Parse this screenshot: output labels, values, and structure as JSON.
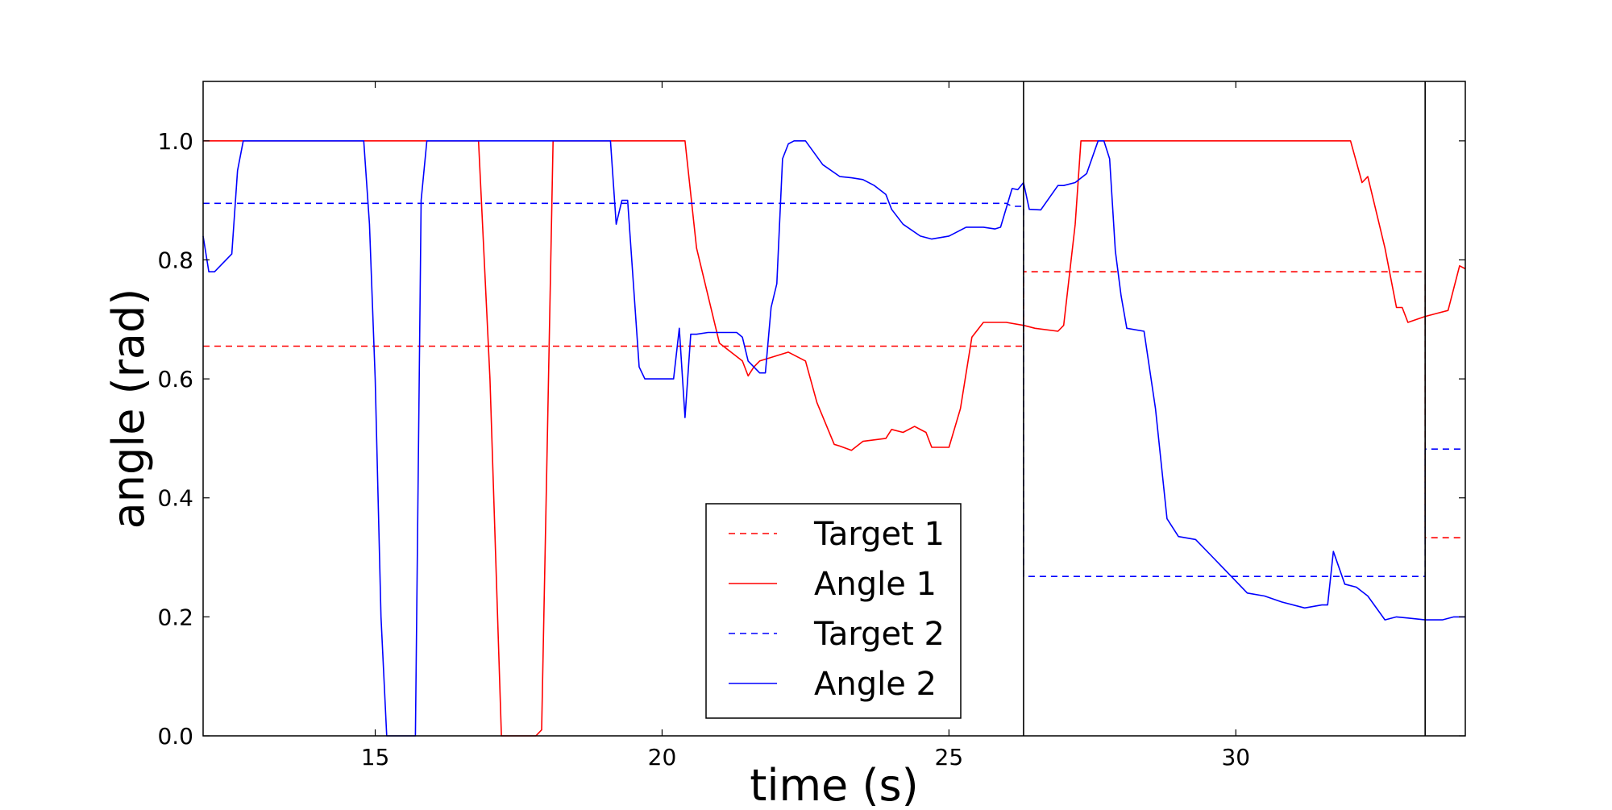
{
  "chart_data": {
    "type": "line",
    "xlabel": "time (s)",
    "ylabel": "angle (rad)",
    "xlim": [
      12,
      34
    ],
    "ylim": [
      0,
      1.1
    ],
    "xticks": [
      15,
      20,
      25,
      30
    ],
    "yticks": [
      0.0,
      0.2,
      0.4,
      0.6,
      0.8,
      1.0
    ],
    "xtick_labels": [
      "15",
      "20",
      "25",
      "30"
    ],
    "ytick_labels": [
      "0.0",
      "0.2",
      "0.4",
      "0.6",
      "0.8",
      "1.0"
    ],
    "grid": false,
    "legend_placement": "bottom-center",
    "vertical_lines": [
      26.3,
      33.3
    ],
    "series": [
      {
        "name": "Target 1",
        "color": "#ff0000",
        "style": "dashed",
        "x": [
          12,
          26.0,
          26.3,
          26.3,
          33.0,
          33.3,
          33.3,
          34
        ],
        "y": [
          0.655,
          0.655,
          0.655,
          0.78,
          0.78,
          0.78,
          0.333,
          0.333
        ]
      },
      {
        "name": "Angle 1",
        "color": "#ff0000",
        "style": "solid",
        "x": [
          12,
          16.8,
          17.0,
          17.2,
          17.8,
          17.9,
          18.0,
          18.1,
          20.4,
          20.6,
          20.9,
          21.0,
          21.4,
          21.5,
          21.6,
          21.7,
          22.2,
          22.5,
          22.7,
          23.0,
          23.1,
          23.3,
          23.5,
          23.9,
          24.0,
          24.2,
          24.4,
          24.6,
          24.7,
          25.0,
          25.2,
          25.4,
          25.6,
          26.0,
          26.3,
          26.5,
          26.9,
          27.0,
          27.2,
          27.3,
          32.0,
          32.2,
          32.3,
          32.4,
          32.6,
          32.8,
          32.9,
          33.0,
          33.3,
          33.5,
          33.7,
          33.9,
          34
        ],
        "y": [
          1.0,
          1.0,
          0.6,
          0.0,
          0.0,
          0.01,
          0.5,
          1.0,
          1.0,
          0.82,
          0.7,
          0.66,
          0.63,
          0.605,
          0.62,
          0.63,
          0.645,
          0.63,
          0.56,
          0.49,
          0.487,
          0.48,
          0.495,
          0.5,
          0.515,
          0.51,
          0.52,
          0.51,
          0.485,
          0.485,
          0.55,
          0.67,
          0.695,
          0.695,
          0.69,
          0.685,
          0.68,
          0.69,
          0.86,
          1.0,
          1.0,
          0.93,
          0.94,
          0.9,
          0.82,
          0.72,
          0.72,
          0.695,
          0.705,
          0.71,
          0.715,
          0.79,
          0.785
        ]
      },
      {
        "name": "Target 2",
        "color": "#0000ff",
        "style": "dashed",
        "x": [
          12,
          26.0,
          26.1,
          26.3,
          26.3,
          33.0,
          33.3,
          33.3,
          34
        ],
        "y": [
          0.895,
          0.895,
          0.89,
          0.89,
          0.268,
          0.268,
          0.268,
          0.482,
          0.482
        ],
        "note_hidden": ""
      },
      {
        "name": "Angle 2",
        "color": "#0000ff",
        "style": "solid",
        "x": [
          12,
          12.1,
          12.2,
          12.5,
          12.6,
          12.7,
          12.8,
          14.8,
          14.9,
          15.0,
          15.1,
          15.2,
          15.7,
          15.8,
          15.9,
          16.0,
          19.1,
          19.2,
          19.3,
          19.4,
          19.6,
          19.7,
          19.8,
          20.0,
          20.2,
          20.3,
          20.4,
          20.5,
          20.6,
          20.8,
          21.3,
          21.4,
          21.5,
          21.7,
          21.8,
          21.9,
          22.0,
          22.1,
          22.2,
          22.3,
          22.5,
          22.8,
          23.1,
          23.3,
          23.5,
          23.7,
          23.9,
          24.0,
          24.2,
          24.5,
          24.7,
          25.0,
          25.3,
          25.6,
          25.8,
          25.9,
          26.1,
          26.2,
          26.3,
          26.4,
          26.6,
          26.9,
          27.0,
          27.2,
          27.4,
          27.6,
          27.7,
          27.8,
          27.9,
          28.0,
          28.1,
          28.4,
          28.6,
          28.8,
          29.0,
          29.3,
          29.6,
          29.9,
          30.2,
          30.5,
          30.8,
          31.2,
          31.5,
          31.6,
          31.7,
          31.9,
          32.1,
          32.3,
          32.6,
          32.8,
          33.0,
          33.3,
          33.6,
          33.8,
          34
        ],
        "y": [
          0.84,
          0.78,
          0.78,
          0.81,
          0.95,
          1.0,
          1.0,
          1.0,
          0.86,
          0.6,
          0.2,
          0.0,
          0.0,
          0.9,
          1.0,
          1.0,
          1.0,
          0.86,
          0.9,
          0.9,
          0.62,
          0.6,
          0.6,
          0.6,
          0.6,
          0.685,
          0.535,
          0.675,
          0.675,
          0.678,
          0.678,
          0.67,
          0.63,
          0.61,
          0.61,
          0.72,
          0.76,
          0.97,
          0.995,
          1.0,
          1.0,
          0.96,
          0.94,
          0.938,
          0.935,
          0.925,
          0.91,
          0.885,
          0.86,
          0.84,
          0.835,
          0.84,
          0.855,
          0.855,
          0.852,
          0.855,
          0.92,
          0.918,
          0.93,
          0.885,
          0.884,
          0.925,
          0.925,
          0.93,
          0.945,
          1.0,
          1.0,
          0.97,
          0.815,
          0.74,
          0.685,
          0.68,
          0.55,
          0.365,
          0.335,
          0.33,
          0.3,
          0.27,
          0.24,
          0.235,
          0.225,
          0.215,
          0.22,
          0.22,
          0.31,
          0.255,
          0.25,
          0.235,
          0.195,
          0.2,
          0.198,
          0.195,
          0.195,
          0.2,
          0.2
        ]
      }
    ]
  }
}
